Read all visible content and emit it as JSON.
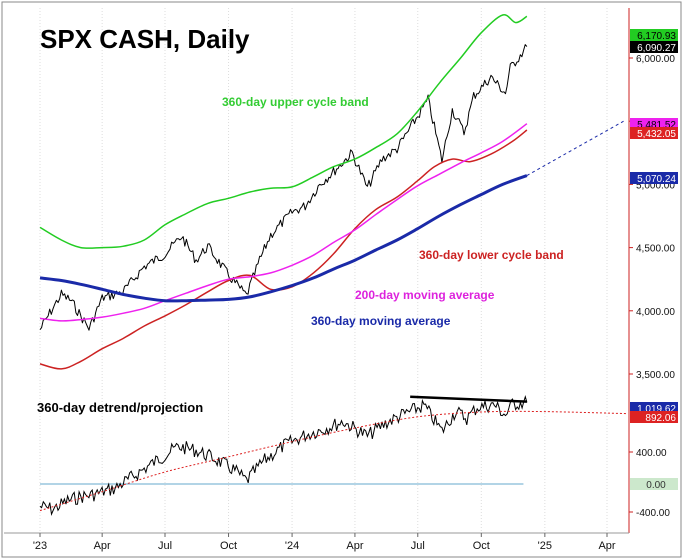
{
  "chart_data": {
    "type": "line",
    "title": "SPX CASH, Daily",
    "x_tick_labels": [
      "'23",
      "Apr",
      "Jul",
      "Oct",
      "'24",
      "Apr",
      "Jul",
      "Oct",
      "'25",
      "Apr"
    ],
    "x_tick_dates": [
      "2023-01",
      "2023-04",
      "2023-07",
      "2023-10",
      "2024-01",
      "2024-04",
      "2024-07",
      "2024-10",
      "2025-01",
      "2025-04"
    ],
    "price_panel": {
      "ylim": [
        3400,
        6250
      ],
      "y_tick_labels": [
        "6,000.00",
        "5,500.00",
        "5,000.00",
        "4,500.00",
        "4,000.00",
        "3,500.00"
      ],
      "y_tick_values": [
        6000,
        5500,
        5000,
        4500,
        4000,
        3500
      ],
      "value_tags": [
        {
          "text": "6,170.93",
          "value": 6170.93,
          "color": "#22cc22"
        },
        {
          "text": "6,090.27",
          "value": 6090.27,
          "color": "#000000"
        },
        {
          "text": "5,481.52",
          "value": 5481.52,
          "color": "#ee22ee"
        },
        {
          "text": "5,432.05",
          "value": 5432.05,
          "color": "#dd2222"
        },
        {
          "text": "5,070.24",
          "value": 5070.24,
          "color": "#1a2aa8"
        }
      ],
      "annotations": [
        {
          "text": "360-day upper cycle band",
          "color": "#33cc33"
        },
        {
          "text": "360-day lower cycle band",
          "color": "#cc2222"
        },
        {
          "text": "200-day moving average",
          "color": "#dd22dd"
        },
        {
          "text": "360-day moving average",
          "color": "#1a2aa8"
        }
      ],
      "series": [
        {
          "key": "spx",
          "color": "#000000",
          "x": [
            "2023-01-01",
            "2023-01-15",
            "2023-02-01",
            "2023-02-15",
            "2023-03-01",
            "2023-03-13",
            "2023-04-01",
            "2023-05-01",
            "2023-06-01",
            "2023-07-01",
            "2023-07-25",
            "2023-08-15",
            "2023-09-01",
            "2023-10-01",
            "2023-10-27",
            "2023-11-15",
            "2023-12-01",
            "2024-01-01",
            "2024-01-20",
            "2024-02-10",
            "2024-03-01",
            "2024-03-28",
            "2024-04-19",
            "2024-05-10",
            "2024-06-01",
            "2024-07-01",
            "2024-07-16",
            "2024-08-05",
            "2024-08-20",
            "2024-09-06",
            "2024-09-20",
            "2024-10-15",
            "2024-11-05",
            "2024-11-12",
            "2024-12-06"
          ],
          "y": [
            3850,
            3980,
            4130,
            4080,
            3960,
            3860,
            4100,
            4150,
            4350,
            4450,
            4590,
            4400,
            4510,
            4280,
            4120,
            4400,
            4600,
            4780,
            4830,
            5000,
            5100,
            5250,
            4970,
            5200,
            5280,
            5540,
            5670,
            5190,
            5590,
            5410,
            5700,
            5850,
            5720,
            5920,
            6090
          ]
        },
        {
          "key": "upper-band",
          "color": "#22cc22",
          "x": [
            "2023-01-01",
            "2023-02-01",
            "2023-03-01",
            "2023-04-01",
            "2023-05-01",
            "2023-06-01",
            "2023-07-01",
            "2023-08-01",
            "2023-09-01",
            "2023-10-01",
            "2023-11-01",
            "2023-12-01",
            "2024-01-01",
            "2024-02-01",
            "2024-03-01",
            "2024-04-01",
            "2024-05-01",
            "2024-06-01",
            "2024-07-01",
            "2024-08-01",
            "2024-09-01",
            "2024-10-01",
            "2024-11-01",
            "2024-11-20",
            "2024-12-06"
          ],
          "y": [
            4660,
            4560,
            4500,
            4500,
            4510,
            4560,
            4680,
            4770,
            4850,
            4890,
            4940,
            4970,
            4980,
            5060,
            5140,
            5200,
            5290,
            5400,
            5580,
            5800,
            6000,
            6200,
            6340,
            6280,
            6330
          ]
        },
        {
          "key": "lower-band",
          "color": "#cc2222",
          "x": [
            "2023-01-01",
            "2023-02-01",
            "2023-03-01",
            "2023-04-01",
            "2023-05-01",
            "2023-06-01",
            "2023-07-01",
            "2023-08-01",
            "2023-09-01",
            "2023-10-01",
            "2023-11-01",
            "2023-12-01",
            "2024-01-01",
            "2024-02-01",
            "2024-03-01",
            "2024-04-01",
            "2024-05-01",
            "2024-06-01",
            "2024-07-01",
            "2024-07-25",
            "2024-08-20",
            "2024-09-15",
            "2024-10-15",
            "2024-11-15",
            "2024-12-06"
          ],
          "y": [
            3580,
            3540,
            3600,
            3700,
            3780,
            3880,
            3960,
            4050,
            4150,
            4240,
            4280,
            4170,
            4190,
            4300,
            4450,
            4650,
            4800,
            4900,
            5030,
            5140,
            5200,
            5180,
            5240,
            5340,
            5430
          ]
        },
        {
          "key": "ma-200",
          "color": "#ee22ee",
          "x": [
            "2023-01-01",
            "2023-02-01",
            "2023-03-01",
            "2023-04-01",
            "2023-05-01",
            "2023-06-01",
            "2023-07-01",
            "2023-08-01",
            "2023-09-01",
            "2023-10-01",
            "2023-11-01",
            "2023-12-01",
            "2024-01-01",
            "2024-02-01",
            "2024-03-01",
            "2024-04-01",
            "2024-05-01",
            "2024-06-01",
            "2024-07-01",
            "2024-08-01",
            "2024-09-01",
            "2024-10-01",
            "2024-11-01",
            "2024-12-06"
          ],
          "y": [
            3940,
            3920,
            3930,
            3950,
            3980,
            4020,
            4080,
            4140,
            4200,
            4250,
            4270,
            4300,
            4360,
            4440,
            4540,
            4640,
            4760,
            4880,
            4990,
            5080,
            5170,
            5250,
            5340,
            5480
          ]
        },
        {
          "key": "ma-360",
          "color": "#1a2aa8",
          "x": [
            "2023-01-01",
            "2023-02-01",
            "2023-03-01",
            "2023-04-01",
            "2023-05-01",
            "2023-06-01",
            "2023-07-01",
            "2023-08-01",
            "2023-09-01",
            "2023-10-01",
            "2023-11-01",
            "2023-12-01",
            "2024-01-01",
            "2024-02-01",
            "2024-03-01",
            "2024-04-01",
            "2024-05-01",
            "2024-06-01",
            "2024-07-01",
            "2024-08-01",
            "2024-09-01",
            "2024-10-01",
            "2024-11-01",
            "2024-12-06"
          ],
          "y": [
            4260,
            4240,
            4210,
            4170,
            4130,
            4100,
            4080,
            4080,
            4085,
            4090,
            4110,
            4150,
            4200,
            4260,
            4330,
            4400,
            4480,
            4560,
            4650,
            4750,
            4840,
            4920,
            5000,
            5070
          ]
        }
      ],
      "projection": {
        "color": "#1a2aa8",
        "x": [
          "2024-12-06",
          "2025-04-25"
        ],
        "y": [
          5070,
          5500
        ]
      }
    },
    "detrend_panel": {
      "label": "360-day detrend/projection",
      "ylim": [
        -480,
        1150
      ],
      "y_tick_labels": [
        "400.00",
        "0.00",
        "-400.00"
      ],
      "y_tick_values": [
        400,
        0,
        -400
      ],
      "value_tags": [
        {
          "text": "1,019.62",
          "value": 1019.62,
          "color": "#1a2aa8"
        },
        {
          "text": "892.06",
          "value": 892.06,
          "color": "#dd2222"
        }
      ],
      "series": [
        {
          "key": "detrend",
          "color": "#000000",
          "x": [
            "2023-01-01",
            "2023-01-20",
            "2023-02-10",
            "2023-03-01",
            "2023-03-20",
            "2023-04-20",
            "2023-05-20",
            "2023-06-20",
            "2023-07-20",
            "2023-08-15",
            "2023-09-10",
            "2023-10-10",
            "2023-10-27",
            "2023-11-20",
            "2023-12-20",
            "2024-01-20",
            "2024-02-20",
            "2024-03-15",
            "2024-04-19",
            "2024-05-15",
            "2024-06-10",
            "2024-07-10",
            "2024-08-05",
            "2024-08-25",
            "2024-09-10",
            "2024-09-25",
            "2024-10-20",
            "2024-11-05",
            "2024-11-15",
            "2024-12-06"
          ],
          "y": [
            -320,
            -360,
            -240,
            -180,
            -150,
            -60,
            120,
            300,
            470,
            420,
            320,
            170,
            40,
            280,
            480,
            610,
            700,
            780,
            600,
            760,
            870,
            980,
            660,
            910,
            820,
            960,
            990,
            860,
            1000,
            1020
          ]
        },
        {
          "key": "projection",
          "color": "#dd2222",
          "x": [
            "2023-01-01",
            "2023-04-01",
            "2023-07-01",
            "2023-10-01",
            "2024-01-01",
            "2024-04-01",
            "2024-07-01",
            "2024-10-01",
            "2025-01-01",
            "2025-04-30"
          ],
          "y": [
            -380,
            -110,
            150,
            340,
            530,
            700,
            840,
            900,
            905,
            880
          ]
        },
        {
          "key": "trendline",
          "color": "#000000",
          "x": [
            "2024-06-20",
            "2024-12-06"
          ],
          "y": [
            1090,
            1030
          ]
        }
      ],
      "zero_tag": "0.00",
      "zero_line": {
        "color": "#66aacc",
        "x": [
          "2023-01-01",
          "2024-12-01"
        ],
        "y": [
          0,
          0
        ]
      }
    }
  }
}
